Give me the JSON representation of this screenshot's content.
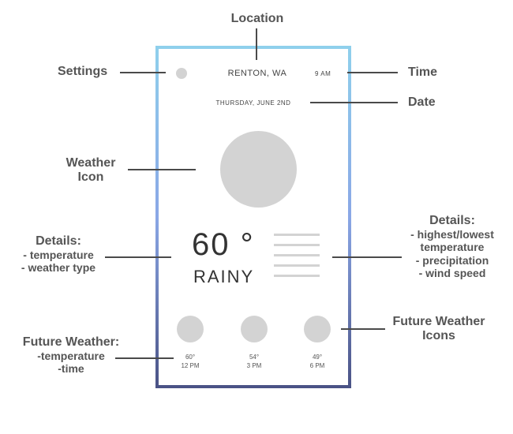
{
  "phone": {
    "location": "RENTON, WA",
    "time": "9 AM",
    "date": "THURSDAY, JUNE 2ND",
    "temperature": "60 °",
    "weather_type": "RAINY",
    "forecast": [
      {
        "temp": "60°",
        "time": "12 PM"
      },
      {
        "temp": "54°",
        "time": "3 PM"
      },
      {
        "temp": "49°",
        "time": "6 PM"
      }
    ]
  },
  "annotations": {
    "location": "Location",
    "settings": "Settings",
    "time": "Time",
    "date": "Date",
    "weather_icon_line1": "Weather",
    "weather_icon_line2": "Icon",
    "details_left_title": "Details:",
    "details_left_1": "- temperature",
    "details_left_2": "- weather type",
    "details_right_title": "Details:",
    "details_right_1": "- highest/lowest",
    "details_right_2": "temperature",
    "details_right_3": "- precipitation",
    "details_right_4": "- wind speed",
    "future_icons_line1": "Future Weather",
    "future_icons_line2": "Icons",
    "future_weather_title": "Future Weather:",
    "future_weather_1": "-temperature",
    "future_weather_2": "-time"
  },
  "colors": {
    "frame_top": "#8fd0ec",
    "frame_mid": "#8aa7e6",
    "frame_bottom": "#4a5285",
    "placeholder_gray": "#d3d3d3",
    "label_gray": "#555555"
  }
}
